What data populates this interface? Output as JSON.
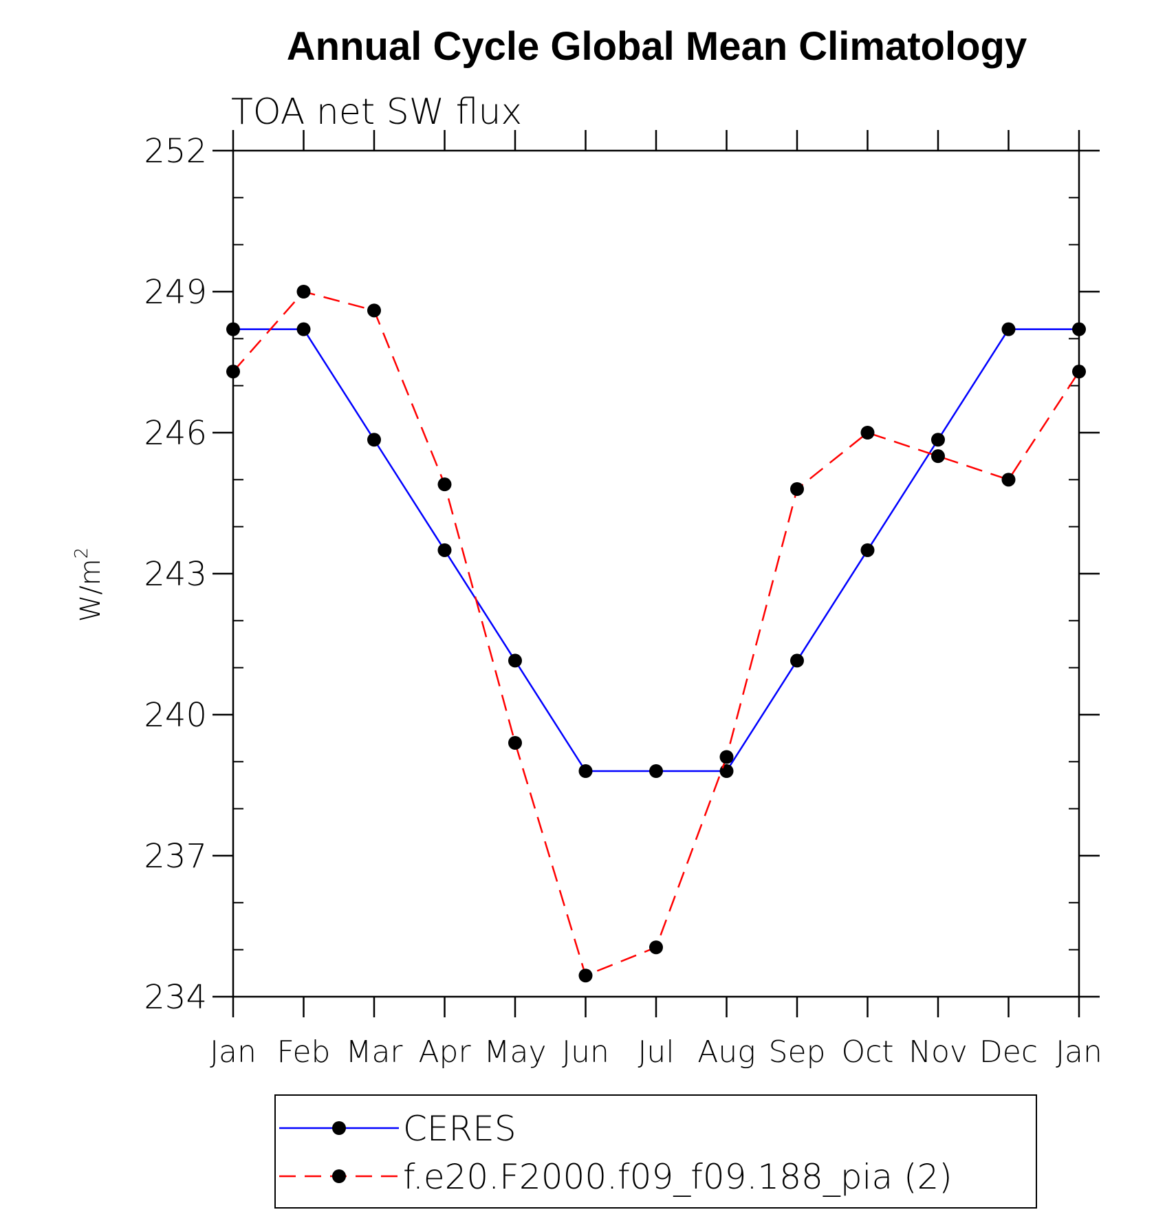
{
  "chart_data": {
    "type": "line",
    "title": "Annual Cycle Global Mean Climatology",
    "subtitle": "TOA net SW flux",
    "xlabel": "",
    "ylabel": "W/m",
    "ylabel_superscript": "2",
    "categories": [
      "Jan",
      "Feb",
      "Mar",
      "Apr",
      "May",
      "Jun",
      "Jul",
      "Aug",
      "Sep",
      "Oct",
      "Nov",
      "Dec",
      "Jan"
    ],
    "ylim": [
      234,
      252
    ],
    "yticks": [
      234,
      237,
      240,
      243,
      246,
      249,
      252
    ],
    "grid": false,
    "legend_position": "bottom",
    "series": [
      {
        "name": "CERES",
        "color": "#0000ff",
        "line_style": "solid",
        "marker": "filled-circle",
        "values": [
          248.2,
          248.2,
          245.85,
          243.5,
          241.15,
          238.8,
          238.8,
          238.8,
          241.15,
          243.5,
          245.85,
          248.2,
          248.2
        ]
      },
      {
        "name": "f.e20.F2000.f09_f09.188_pia (2)",
        "color": "#ff0000",
        "line_style": "dashed",
        "marker": "filled-circle",
        "values": [
          247.3,
          249.0,
          248.6,
          244.9,
          239.4,
          234.45,
          235.05,
          239.1,
          244.8,
          246.0,
          245.5,
          245.0,
          247.3
        ]
      }
    ]
  }
}
